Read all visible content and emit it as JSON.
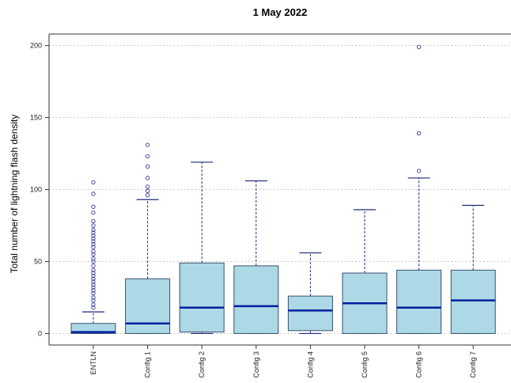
{
  "chart_data": {
    "type": "box",
    "title": "1 May 2022",
    "xlabel": "",
    "ylabel": "Total number of lightning flash density",
    "ylim": [
      -8,
      208
    ],
    "yticks": [
      0,
      50,
      100,
      150,
      200
    ],
    "grid": "horizontal dotted",
    "colors": {
      "box_fill": "#add8e6",
      "box_stroke": "#3a5170",
      "median": "#00209f",
      "whisker": "#1f2a7a",
      "outlier": "#3a3a9a",
      "grid": "#bbbbbb"
    },
    "categories": [
      "ENTLN",
      "Config 1",
      "Config 2",
      "Config 3",
      "Config 4",
      "Config 5",
      "Config 6",
      "Config 7"
    ],
    "boxes": [
      {
        "min": 0,
        "q1": 0,
        "median": 1,
        "q3": 7,
        "max": 15,
        "outliers": [
          18,
          20,
          23,
          25,
          28,
          30,
          32,
          34,
          36,
          38,
          40,
          42,
          44,
          47,
          50,
          52,
          55,
          57,
          60,
          62,
          64,
          66,
          68,
          70,
          72,
          75,
          78,
          84,
          88,
          97,
          105
        ]
      },
      {
        "min": 0,
        "q1": 0,
        "median": 7,
        "q3": 38,
        "max": 93,
        "outliers": [
          96,
          99,
          102,
          108,
          116,
          123,
          131
        ]
      },
      {
        "min": 0,
        "q1": 1,
        "median": 18,
        "q3": 49,
        "max": 119,
        "outliers": []
      },
      {
        "min": 0,
        "q1": 0,
        "median": 19,
        "q3": 47,
        "max": 106,
        "outliers": []
      },
      {
        "min": 0,
        "q1": 2,
        "median": 16,
        "q3": 26,
        "max": 56,
        "outliers": []
      },
      {
        "min": 0,
        "q1": 0,
        "median": 21,
        "q3": 42,
        "max": 86,
        "outliers": []
      },
      {
        "min": 0,
        "q1": 0,
        "median": 18,
        "q3": 44,
        "max": 108,
        "outliers": [
          113,
          139,
          199
        ]
      },
      {
        "min": 0,
        "q1": 0,
        "median": 23,
        "q3": 44,
        "max": 89,
        "outliers": []
      }
    ]
  }
}
